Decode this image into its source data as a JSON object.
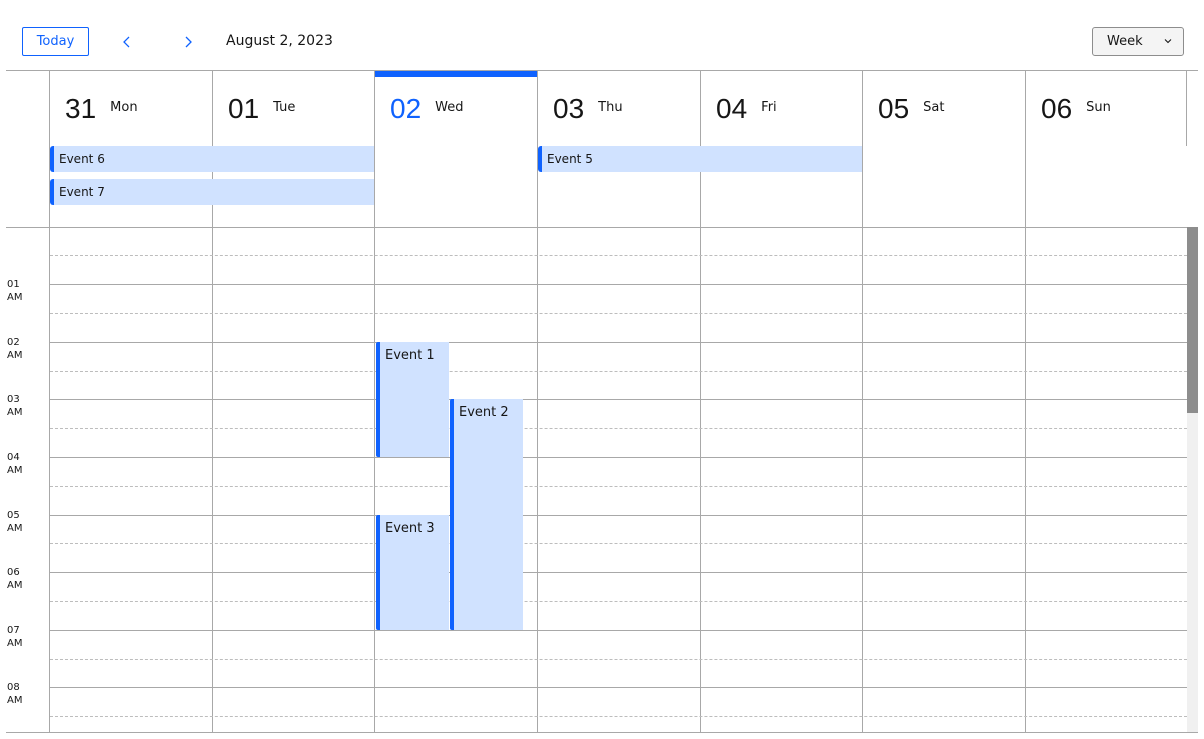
{
  "toolbar": {
    "today_label": "Today",
    "current_date": "August 2, 2023",
    "view_label": "Week"
  },
  "days": [
    {
      "num": "31",
      "name": "Mon"
    },
    {
      "num": "01",
      "name": "Tue"
    },
    {
      "num": "02",
      "name": "Wed",
      "today": true
    },
    {
      "num": "03",
      "name": "Thu"
    },
    {
      "num": "04",
      "name": "Fri"
    },
    {
      "num": "05",
      "name": "Sat"
    },
    {
      "num": "06",
      "name": "Sun"
    }
  ],
  "allday_events": [
    {
      "title": "Event 6",
      "start_day": "31",
      "end_day": "01"
    },
    {
      "title": "Event 7",
      "start_day": "31",
      "end_day": "01"
    },
    {
      "title": "Event 5",
      "start_day": "03",
      "end_day": "04"
    }
  ],
  "time_labels": [
    {
      "hour": "01",
      "ampm": "AM"
    },
    {
      "hour": "02",
      "ampm": "AM"
    },
    {
      "hour": "03",
      "ampm": "AM"
    },
    {
      "hour": "04",
      "ampm": "AM"
    },
    {
      "hour": "05",
      "ampm": "AM"
    },
    {
      "hour": "06",
      "ampm": "AM"
    },
    {
      "hour": "07",
      "ampm": "AM"
    },
    {
      "hour": "08",
      "ampm": "AM"
    }
  ],
  "timed_events": [
    {
      "title": "Event 1",
      "day": "02",
      "start": "2:00 AM",
      "end": "4:00 AM"
    },
    {
      "title": "Event 2",
      "day": "02",
      "start": "3:00 AM",
      "end": "7:00 AM"
    },
    {
      "title": "Event 3",
      "day": "02",
      "start": "5:00 AM",
      "end": "7:00 AM"
    }
  ],
  "colors": {
    "accent": "#0f62fe",
    "event_bg": "#d0e2ff",
    "grid": "#a8a8a8"
  },
  "icons": {
    "prev": "chevron-left-icon",
    "next": "chevron-right-icon",
    "dropdown": "chevron-down-icon"
  }
}
